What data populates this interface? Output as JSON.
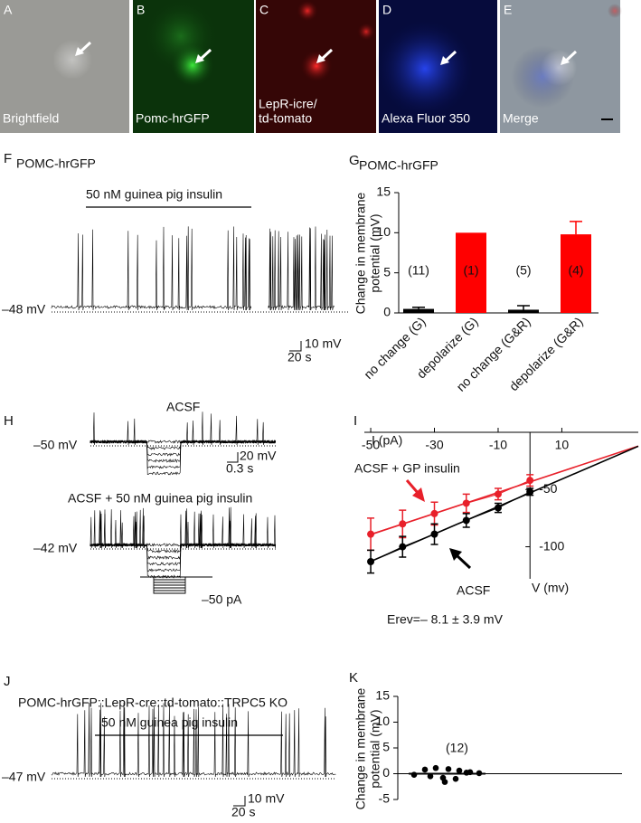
{
  "images": [
    {
      "letter": "A",
      "label": [
        "Brightfield"
      ]
    },
    {
      "letter": "B",
      "label": [
        "Pomc-hrGFP"
      ]
    },
    {
      "letter": "C",
      "label": [
        "LepR-icre/",
        "td-tomato"
      ]
    },
    {
      "letter": "D",
      "label": [
        "Alexa Fluor 350"
      ]
    },
    {
      "letter": "E",
      "label": [
        "Merge"
      ]
    }
  ],
  "panel_f": {
    "letter": "F",
    "title": "POMC-hrGFP",
    "stimulus": "50 nM guinea pig insulin",
    "baseline": "–48 mV",
    "scale_y": "10 mV",
    "scale_x": "20 s"
  },
  "panel_h": {
    "letter": "H",
    "top_title": "ACSF",
    "top_baseline": "–50 mV",
    "scale_y": "20 mV",
    "scale_x": "0.3 s",
    "bottom_title": "ACSF + 50 nM guinea pig insulin",
    "bottom_baseline": "–42 mV",
    "current": "–50 pA"
  },
  "panel_j": {
    "letter": "J",
    "title": "POMC-hrGFP::LepR-cre::td-tomato::TRPC5 KO",
    "stimulus": "50 nM guinea pig insulin",
    "baseline": "–47 mV",
    "scale_y": "10 mV",
    "scale_x": "20 s"
  },
  "chart_data": [
    {
      "type": "bar",
      "letter": "G",
      "title": "POMC-hrGFP",
      "ylabel": [
        "Change in membrane",
        "potential (mV)"
      ],
      "categories": [
        "no change (G)",
        "depolarize (G)",
        "no change (G&R)",
        "depolarize (G&R)"
      ],
      "values": [
        0.5,
        10,
        0.4,
        9.8
      ],
      "errors": [
        0.2,
        null,
        0.5,
        1.6
      ],
      "annotations": [
        "(11)",
        "(1)",
        "(5)",
        "(4)"
      ],
      "colors": [
        "#000000",
        "#ff0000",
        "#000000",
        "#ff0000"
      ],
      "ylim": [
        0,
        15
      ],
      "yticks": [
        0,
        5,
        10,
        15
      ]
    },
    {
      "type": "line",
      "letter": "I",
      "xlabel": "I (pA)",
      "ylabel": "V (mv)",
      "annotation": "Erev=– 8.1 ± 3.9 mV",
      "x": [
        -50,
        -40,
        -30,
        -20,
        -10,
        0
      ],
      "series": [
        {
          "name": "ACSF + GP insulin",
          "color": "#e8202a",
          "values": [
            -89,
            -80,
            -71,
            -62,
            -54,
            -42
          ],
          "errors": [
            14,
            12,
            10,
            8,
            5,
            5
          ]
        },
        {
          "name": "ACSF",
          "color": "#000000",
          "values": [
            -113,
            -100,
            -89,
            -77,
            -66,
            -52
          ],
          "errors": [
            10,
            9,
            9,
            6,
            4,
            3
          ]
        }
      ],
      "xlim": [
        -52,
        34
      ],
      "xticks": [
        -50,
        -30,
        -10,
        10
      ],
      "ylim": [
        -128,
        0
      ],
      "yticks": [
        -50,
        -100
      ]
    },
    {
      "type": "scatter",
      "letter": "K",
      "ylabel": [
        "Change in membrane",
        "potential (mV)"
      ],
      "annotation": "(12)",
      "values": [
        0.8,
        1.1,
        0.9,
        0.6,
        0.3,
        0.1,
        -0.2,
        -0.5,
        -0.8,
        -1.0,
        -1.6,
        0.2
      ],
      "mean": 0,
      "ylim": [
        -5,
        15
      ],
      "yticks": [
        -5,
        0,
        5,
        10,
        15
      ]
    }
  ]
}
